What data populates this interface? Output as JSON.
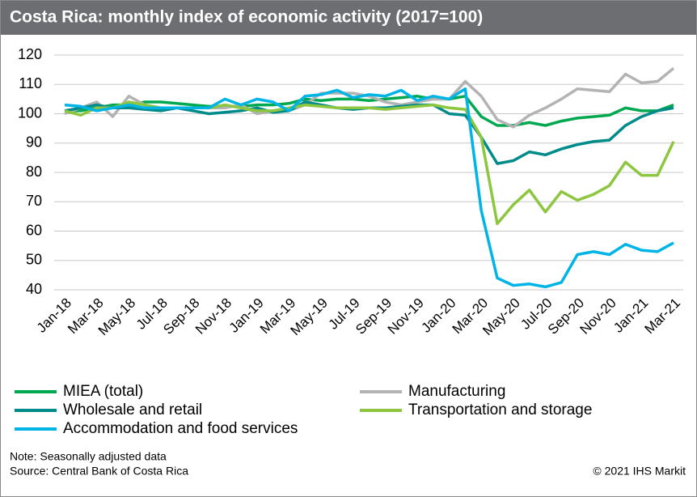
{
  "chart_data": {
    "type": "line",
    "title": "Costa Rica: monthly index of economic activity (2017=100)",
    "categories": [
      "Jan-18",
      null,
      "Mar-18",
      null,
      "May-18",
      null,
      "Jul-18",
      null,
      "Sep-18",
      null,
      "Nov-18",
      null,
      "Jan-19",
      null,
      "Mar-19",
      null,
      "May-19",
      null,
      "Jul-19",
      null,
      "Sep-19",
      null,
      "Nov-19",
      null,
      "Jan-20",
      null,
      "Mar-20",
      null,
      "May-20",
      null,
      "Jul-20",
      null,
      "Sep-20",
      null,
      "Nov-20",
      null,
      "Jan-21",
      null,
      "Mar-21"
    ],
    "series": [
      {
        "name": "MIEA (total)",
        "color": "#00a84f",
        "values": [
          101,
          101,
          102,
          103,
          103,
          104,
          104,
          103.5,
          103,
          102.5,
          102.5,
          102.5,
          103,
          103,
          103.5,
          105,
          104.5,
          105,
          105,
          104.5,
          105,
          105.5,
          106,
          105,
          105,
          106,
          99,
          96,
          96,
          97,
          96,
          97.5,
          98.5,
          99,
          99.5,
          102,
          101,
          101,
          103
        ]
      },
      {
        "name": "Manufacturing",
        "color": "#b3b3b3",
        "values": [
          100,
          102,
          104,
          99,
          106,
          103,
          102,
          102,
          102,
          102,
          102,
          103,
          100,
          101,
          101,
          103,
          107,
          107,
          107,
          106,
          104,
          103,
          104,
          105,
          105,
          111,
          106,
          98,
          95.5,
          99.5,
          102,
          105,
          108.5,
          108,
          107.5,
          113.5,
          110.5,
          111,
          115.5
        ]
      },
      {
        "name": "Wholesale and retail",
        "color": "#008b8b",
        "values": [
          101,
          102,
          103,
          102,
          102,
          101.5,
          101,
          102,
          101,
          100,
          100.5,
          101,
          102,
          100.5,
          101,
          104,
          103,
          102,
          101.5,
          102,
          102,
          102.5,
          103,
          103,
          100,
          99.5,
          92,
          83,
          84,
          87,
          86,
          88,
          89.5,
          90.5,
          91,
          96,
          99,
          101,
          102
        ]
      },
      {
        "name": "Transportation and storage",
        "color": "#8dc63f",
        "values": [
          101,
          99.5,
          102,
          102,
          104,
          103,
          102,
          102,
          102,
          102,
          103,
          102,
          101,
          101,
          102,
          103,
          102.5,
          102,
          102,
          102,
          101.5,
          102,
          102.5,
          103,
          102,
          101.5,
          92,
          62.5,
          69,
          74,
          66.5,
          73.5,
          70.5,
          72.5,
          75.5,
          83.5,
          79,
          79,
          90.5
        ]
      },
      {
        "name": "Accommodation and food services",
        "color": "#00b4e6",
        "values": [
          103,
          102.5,
          101,
          102,
          103,
          102,
          102,
          102,
          102,
          102,
          105,
          103,
          105,
          104,
          101,
          106,
          106.5,
          108,
          105.5,
          106.5,
          106,
          108,
          104.5,
          106,
          105,
          108.5,
          67,
          44,
          41.5,
          42,
          41,
          42.5,
          52,
          53,
          52,
          55.5,
          53.5,
          53,
          56
        ]
      }
    ],
    "ylim": [
      40,
      120
    ],
    "yticks": [
      40,
      50,
      60,
      70,
      80,
      90,
      100,
      110,
      120
    ],
    "grid": true,
    "note": "Note: Seasonally adjusted data",
    "source": "Source: Central Bank of Costa Rica",
    "copyright": "© 2021 IHS Markit"
  }
}
